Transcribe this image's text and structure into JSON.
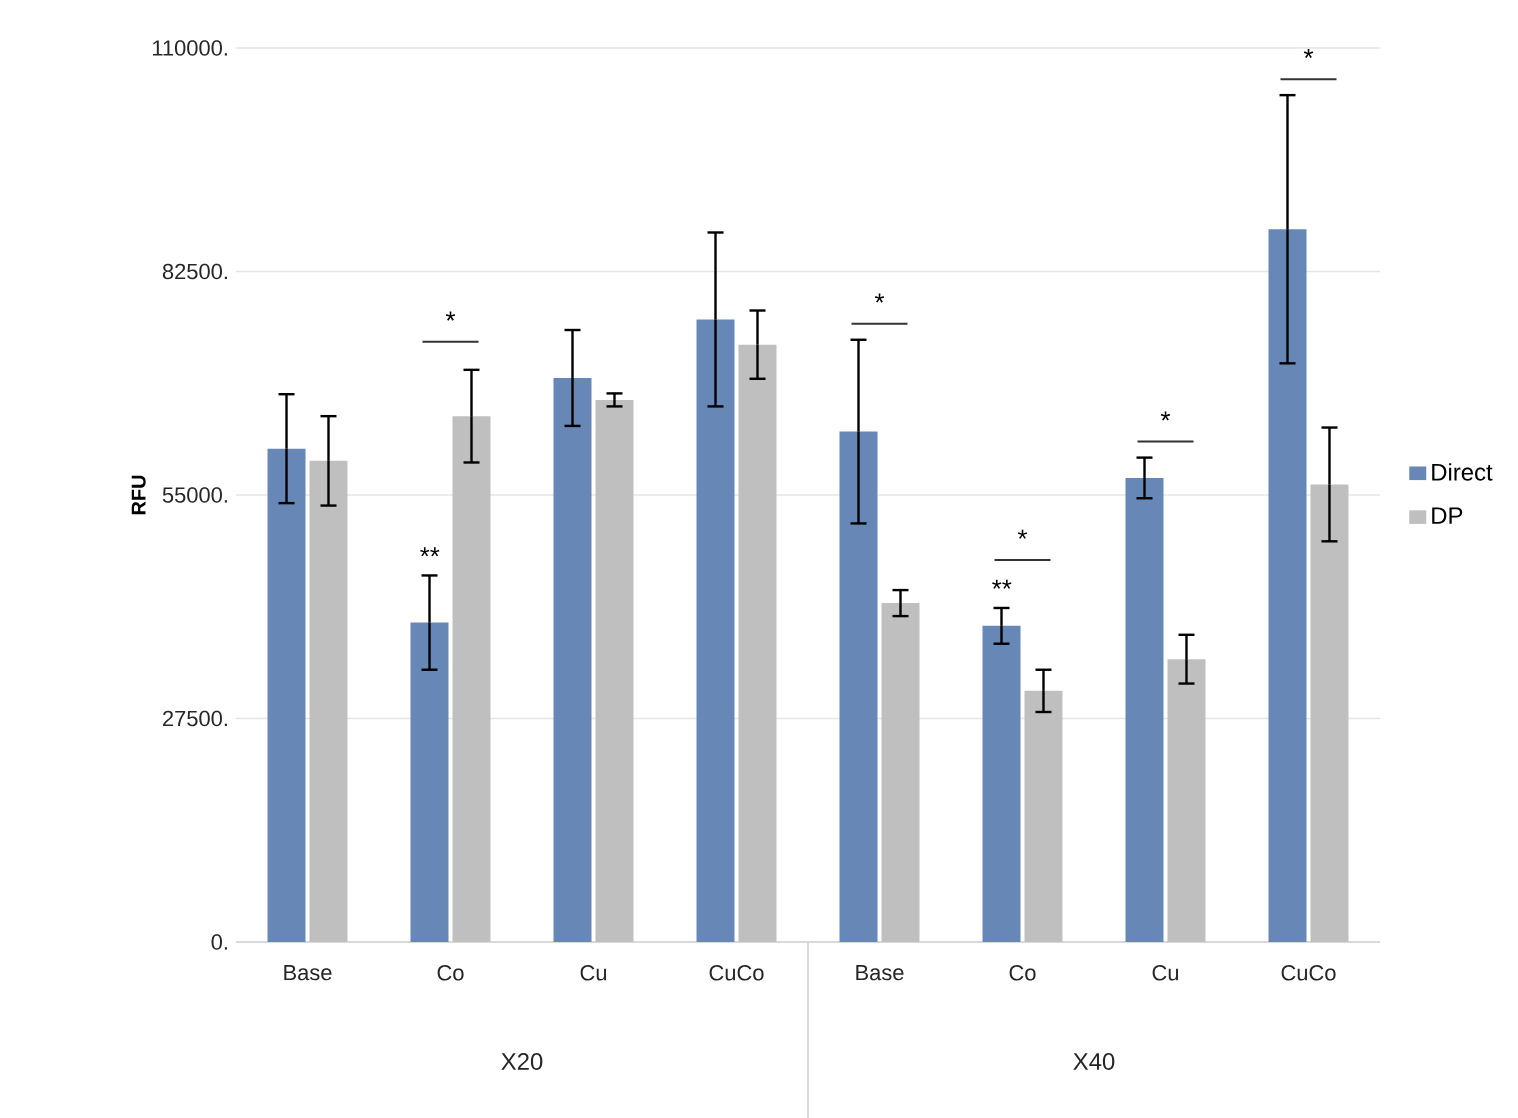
{
  "chart_data": {
    "type": "bar",
    "ylabel": "RFU",
    "categories": [
      "Base",
      "Co",
      "Cu",
      "CuCo",
      "Base",
      "Co",
      "Cu",
      "CuCo"
    ],
    "series": [
      {
        "name": "Direct",
        "color": "#6787b7",
        "values": [
          60700,
          39300,
          69400,
          76600,
          62800,
          38900,
          57100,
          87700
        ],
        "errors": [
          6700,
          5800,
          5900,
          10700,
          11300,
          2200,
          2500,
          16500
        ]
      },
      {
        "name": "DP",
        "color": "#bfbfbf",
        "values": [
          59200,
          64700,
          66700,
          73500,
          41700,
          30900,
          34800,
          56300
        ],
        "errors": [
          5500,
          5700,
          800,
          4200,
          1600,
          2600,
          3000,
          7000
        ]
      }
    ],
    "ylim": [
      0,
      110000
    ],
    "yticks": [
      {
        "value": 0,
        "label": "0."
      },
      {
        "value": 27500,
        "label": "27500."
      },
      {
        "value": 55000,
        "label": "55000."
      },
      {
        "value": 82500,
        "label": "82500."
      },
      {
        "value": 110000,
        "label": "110000."
      }
    ],
    "grid": "y",
    "legend": "right",
    "annotations": [
      "**",
      "*",
      "*",
      "**",
      "*",
      "*",
      "*",
      "X20",
      "X40"
    ]
  }
}
